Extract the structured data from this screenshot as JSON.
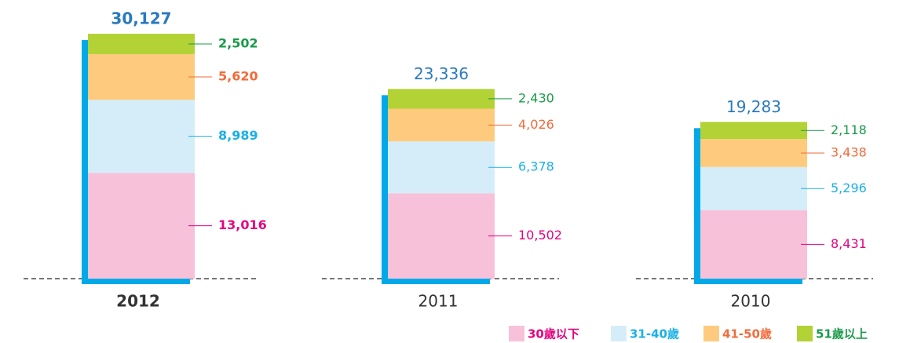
{
  "chart_data": {
    "type": "stacked_bar",
    "categories": [
      "2012",
      "2011",
      "2010"
    ],
    "series": [
      {
        "name": "30歲以下",
        "color": "#f7c1d9",
        "text_color": "#e6007e",
        "values": [
          13016,
          10502,
          8431
        ],
        "value_labels": [
          "13,016",
          "10,502",
          "8,431"
        ]
      },
      {
        "name": "31-40歲",
        "color": "#d5edf9",
        "text_color": "#1bb0e6",
        "values": [
          8989,
          6378,
          5296
        ],
        "value_labels": [
          "8,989",
          "6,378",
          "5,296"
        ]
      },
      {
        "name": "41-50歲",
        "color": "#fecb7e",
        "text_color": "#f26b3a",
        "values": [
          5620,
          4026,
          3438
        ],
        "value_labels": [
          "5,620",
          "4,026",
          "3,438"
        ]
      },
      {
        "name": "51歲以上",
        "color": "#b2d235",
        "text_color": "#1a9a4a",
        "values": [
          2502,
          2430,
          2118
        ],
        "value_labels": [
          "2,502",
          "2,430",
          "2,118"
        ]
      }
    ],
    "totals": {
      "color": "#2a7abf",
      "values": [
        30127,
        23336,
        19283
      ],
      "value_labels": [
        "30,127",
        "23,336",
        "19,283"
      ]
    },
    "frame_color": "#00a9e8",
    "bold_category": 0
  }
}
